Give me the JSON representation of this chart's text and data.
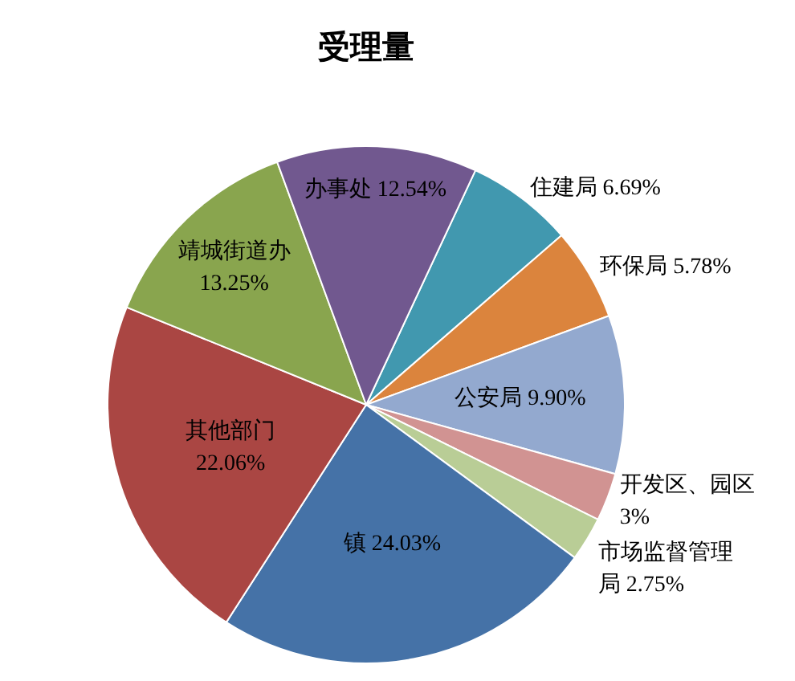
{
  "chart_data": {
    "type": "pie",
    "title": "受理量",
    "categories": [
      "住建局",
      "环保局",
      "公安局",
      "开发区、园区",
      "市场监督管理局",
      "镇",
      "其他部门",
      "靖城街道办",
      "办事处"
    ],
    "values": [
      6.69,
      5.78,
      9.9,
      3,
      2.75,
      24.03,
      22.06,
      13.25,
      12.54
    ],
    "colors": [
      "#4198af",
      "#db843d",
      "#93a9cf",
      "#d19392",
      "#b9cd96",
      "#4572a7",
      "#aa4643",
      "#89a54e",
      "#71588f"
    ],
    "value_labels": [
      "6.69%",
      "5.78%",
      "9.90%",
      "3%",
      "2.75%",
      "24.03%",
      "22.06%",
      "13.25%",
      "12.54%"
    ],
    "legend": false
  }
}
